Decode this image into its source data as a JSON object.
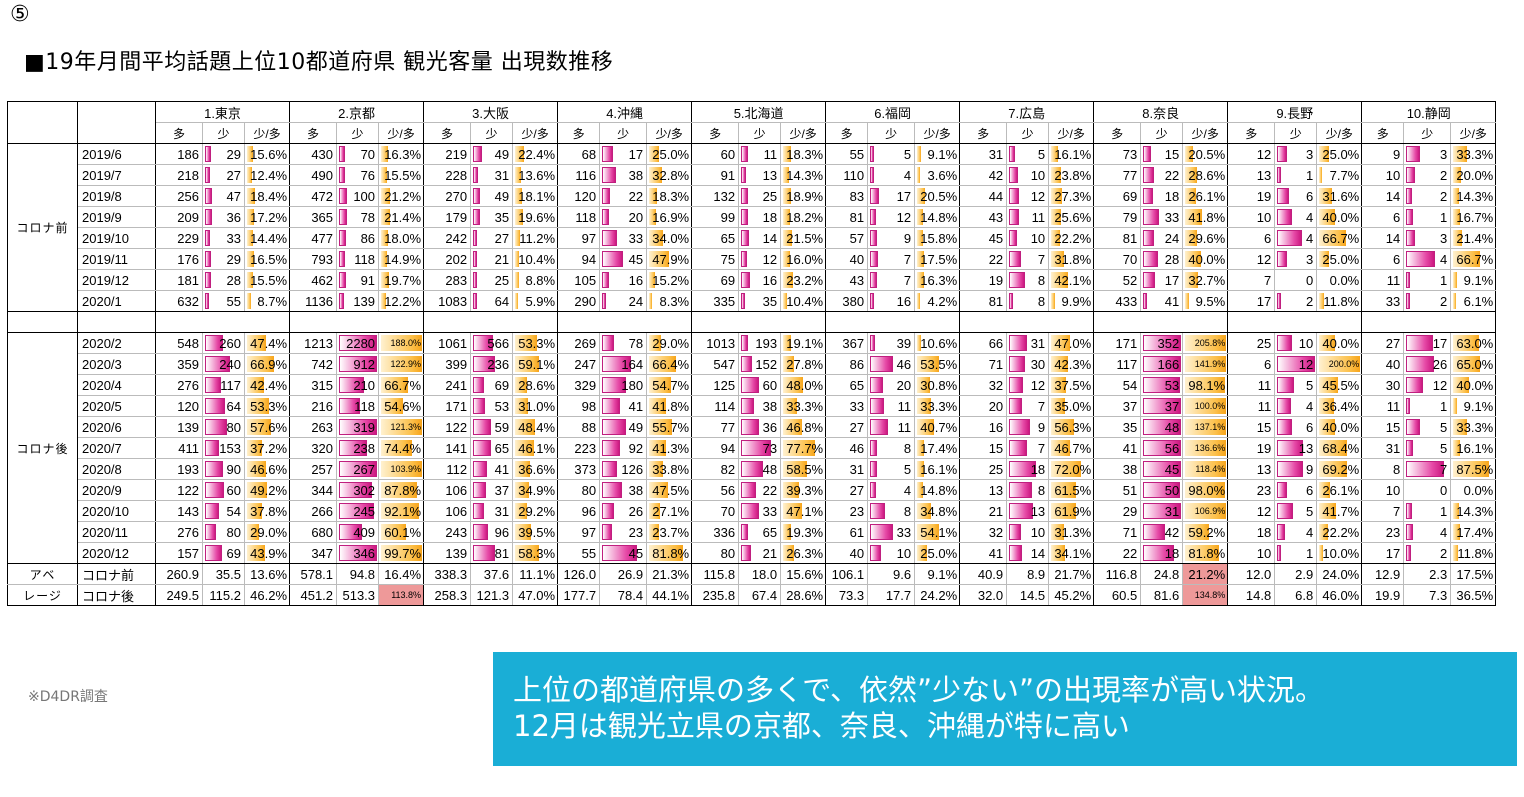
{
  "marker": "⑤",
  "title": "■19年月間平均話題上位10都道府県 観光客量 出現数推移",
  "subheaders": [
    "多",
    "少",
    "少/多"
  ],
  "prefectures": [
    "1.東京",
    "2.京都",
    "3.大阪",
    "4.沖縄",
    "5.北海道",
    "6.福岡",
    "7.広島",
    "8.奈良",
    "9.長野",
    "10.静岡"
  ],
  "groups": {
    "before": "コロナ前",
    "after": "コロナ後",
    "average_l1": "アベ",
    "average_l2": "レージ"
  },
  "avg_labels": [
    "コロナ前",
    "コロナ後"
  ],
  "note": "※D4DR調査",
  "callout": {
    "line1": "上位の都道府県の多くで、依然”少ない”の出現率が高い状況。",
    "line2": "12月は観光立県の京都、奈良、沖縄が特に高い"
  },
  "colors": {
    "bar_pink": "#e64aa7",
    "bar_orange": "#fcc04a",
    "highlight": "#ee9999",
    "callout_bg": "#1aaed6"
  },
  "pre_rows": [
    {
      "period": "2019/6",
      "cells": [
        [
          186,
          29,
          "15.6%"
        ],
        [
          430,
          70,
          "16.3%"
        ],
        [
          219,
          49,
          "22.4%"
        ],
        [
          68,
          17,
          "25.0%"
        ],
        [
          60,
          11,
          "18.3%"
        ],
        [
          55,
          5,
          "9.1%"
        ],
        [
          31,
          5,
          "16.1%"
        ],
        [
          73,
          15,
          "20.5%"
        ],
        [
          12,
          3,
          "25.0%"
        ],
        [
          9,
          3,
          "33.3%"
        ]
      ]
    },
    {
      "period": "2019/7",
      "cells": [
        [
          218,
          27,
          "12.4%"
        ],
        [
          490,
          76,
          "15.5%"
        ],
        [
          228,
          31,
          "13.6%"
        ],
        [
          116,
          38,
          "32.8%"
        ],
        [
          91,
          13,
          "14.3%"
        ],
        [
          110,
          4,
          "3.6%"
        ],
        [
          42,
          10,
          "23.8%"
        ],
        [
          77,
          22,
          "28.6%"
        ],
        [
          13,
          1,
          "7.7%"
        ],
        [
          10,
          2,
          "20.0%"
        ]
      ]
    },
    {
      "period": "2019/8",
      "cells": [
        [
          256,
          47,
          "18.4%"
        ],
        [
          472,
          100,
          "21.2%"
        ],
        [
          270,
          49,
          "18.1%"
        ],
        [
          120,
          22,
          "18.3%"
        ],
        [
          132,
          25,
          "18.9%"
        ],
        [
          83,
          17,
          "20.5%"
        ],
        [
          44,
          12,
          "27.3%"
        ],
        [
          69,
          18,
          "26.1%"
        ],
        [
          19,
          6,
          "31.6%"
        ],
        [
          14,
          2,
          "14.3%"
        ]
      ]
    },
    {
      "period": "2019/9",
      "cells": [
        [
          209,
          36,
          "17.2%"
        ],
        [
          365,
          78,
          "21.4%"
        ],
        [
          179,
          35,
          "19.6%"
        ],
        [
          118,
          20,
          "16.9%"
        ],
        [
          99,
          18,
          "18.2%"
        ],
        [
          81,
          12,
          "14.8%"
        ],
        [
          43,
          11,
          "25.6%"
        ],
        [
          79,
          33,
          "41.8%"
        ],
        [
          10,
          4,
          "40.0%"
        ],
        [
          6,
          1,
          "16.7%"
        ]
      ]
    },
    {
      "period": "2019/10",
      "cells": [
        [
          229,
          33,
          "14.4%"
        ],
        [
          477,
          86,
          "18.0%"
        ],
        [
          242,
          27,
          "11.2%"
        ],
        [
          97,
          33,
          "34.0%"
        ],
        [
          65,
          14,
          "21.5%"
        ],
        [
          57,
          9,
          "15.8%"
        ],
        [
          45,
          10,
          "22.2%"
        ],
        [
          81,
          24,
          "29.6%"
        ],
        [
          6,
          4,
          "66.7%"
        ],
        [
          14,
          3,
          "21.4%"
        ]
      ]
    },
    {
      "period": "2019/11",
      "cells": [
        [
          176,
          29,
          "16.5%"
        ],
        [
          793,
          118,
          "14.9%"
        ],
        [
          202,
          21,
          "10.4%"
        ],
        [
          94,
          45,
          "47.9%"
        ],
        [
          75,
          12,
          "16.0%"
        ],
        [
          40,
          7,
          "17.5%"
        ],
        [
          22,
          7,
          "31.8%"
        ],
        [
          70,
          28,
          "40.0%"
        ],
        [
          12,
          3,
          "25.0%"
        ],
        [
          6,
          4,
          "66.7%"
        ]
      ]
    },
    {
      "period": "2019/12",
      "cells": [
        [
          181,
          28,
          "15.5%"
        ],
        [
          462,
          91,
          "19.7%"
        ],
        [
          283,
          25,
          "8.8%"
        ],
        [
          105,
          16,
          "15.2%"
        ],
        [
          69,
          16,
          "23.2%"
        ],
        [
          43,
          7,
          "16.3%"
        ],
        [
          19,
          8,
          "42.1%"
        ],
        [
          52,
          17,
          "32.7%"
        ],
        [
          7,
          0,
          "0.0%"
        ],
        [
          11,
          1,
          "9.1%"
        ]
      ]
    },
    {
      "period": "2020/1",
      "cells": [
        [
          632,
          55,
          "8.7%"
        ],
        [
          1136,
          139,
          "12.2%"
        ],
        [
          1083,
          64,
          "5.9%"
        ],
        [
          290,
          24,
          "8.3%"
        ],
        [
          335,
          35,
          "10.4%"
        ],
        [
          380,
          16,
          "4.2%"
        ],
        [
          81,
          8,
          "9.9%"
        ],
        [
          433,
          41,
          "9.5%"
        ],
        [
          17,
          2,
          "11.8%"
        ],
        [
          33,
          2,
          "6.1%"
        ]
      ]
    }
  ],
  "post_rows": [
    {
      "period": "2020/2",
      "cells": [
        [
          548,
          260,
          "47.4%"
        ],
        [
          1213,
          2280,
          "188.0%"
        ],
        [
          1061,
          566,
          "53.3%"
        ],
        [
          269,
          78,
          "29.0%"
        ],
        [
          1013,
          193,
          "19.1%"
        ],
        [
          367,
          39,
          "10.6%"
        ],
        [
          66,
          31,
          "47.0%"
        ],
        [
          171,
          352,
          "205.8%"
        ],
        [
          25,
          10,
          "40.0%"
        ],
        [
          27,
          17,
          "63.0%"
        ]
      ]
    },
    {
      "period": "2020/3",
      "cells": [
        [
          359,
          240,
          "66.9%"
        ],
        [
          742,
          912,
          "122.9%"
        ],
        [
          399,
          236,
          "59.1%"
        ],
        [
          247,
          164,
          "66.4%"
        ],
        [
          547,
          152,
          "27.8%"
        ],
        [
          86,
          46,
          "53.5%"
        ],
        [
          71,
          30,
          "42.3%"
        ],
        [
          117,
          166,
          "141.9%"
        ],
        [
          6,
          12,
          "200.0%"
        ],
        [
          40,
          26,
          "65.0%"
        ]
      ]
    },
    {
      "period": "2020/4",
      "cells": [
        [
          276,
          117,
          "42.4%"
        ],
        [
          315,
          210,
          "66.7%"
        ],
        [
          241,
          69,
          "28.6%"
        ],
        [
          329,
          180,
          "54.7%"
        ],
        [
          125,
          60,
          "48.0%"
        ],
        [
          65,
          20,
          "30.8%"
        ],
        [
          32,
          12,
          "37.5%"
        ],
        [
          54,
          53,
          "98.1%"
        ],
        [
          11,
          5,
          "45.5%"
        ],
        [
          30,
          12,
          "40.0%"
        ]
      ]
    },
    {
      "period": "2020/5",
      "cells": [
        [
          120,
          64,
          "53.3%"
        ],
        [
          216,
          118,
          "54.6%"
        ],
        [
          171,
          53,
          "31.0%"
        ],
        [
          98,
          41,
          "41.8%"
        ],
        [
          114,
          38,
          "33.3%"
        ],
        [
          33,
          11,
          "33.3%"
        ],
        [
          20,
          7,
          "35.0%"
        ],
        [
          37,
          37,
          "100.0%"
        ],
        [
          11,
          4,
          "36.4%"
        ],
        [
          11,
          1,
          "9.1%"
        ]
      ]
    },
    {
      "period": "2020/6",
      "cells": [
        [
          139,
          80,
          "57.6%"
        ],
        [
          263,
          319,
          "121.3%"
        ],
        [
          122,
          59,
          "48.4%"
        ],
        [
          88,
          49,
          "55.7%"
        ],
        [
          77,
          36,
          "46.8%"
        ],
        [
          27,
          11,
          "40.7%"
        ],
        [
          16,
          9,
          "56.3%"
        ],
        [
          35,
          48,
          "137.1%"
        ],
        [
          15,
          6,
          "40.0%"
        ],
        [
          15,
          5,
          "33.3%"
        ]
      ]
    },
    {
      "period": "2020/7",
      "cells": [
        [
          411,
          153,
          "37.2%"
        ],
        [
          320,
          238,
          "74.4%"
        ],
        [
          141,
          65,
          "46.1%"
        ],
        [
          223,
          92,
          "41.3%"
        ],
        [
          94,
          73,
          "77.7%"
        ],
        [
          46,
          8,
          "17.4%"
        ],
        [
          15,
          7,
          "46.7%"
        ],
        [
          41,
          56,
          "136.6%"
        ],
        [
          19,
          13,
          "68.4%"
        ],
        [
          31,
          5,
          "16.1%"
        ]
      ]
    },
    {
      "period": "2020/8",
      "cells": [
        [
          193,
          90,
          "46.6%"
        ],
        [
          257,
          267,
          "103.9%"
        ],
        [
          112,
          41,
          "36.6%"
        ],
        [
          373,
          126,
          "33.8%"
        ],
        [
          82,
          48,
          "58.5%"
        ],
        [
          31,
          5,
          "16.1%"
        ],
        [
          25,
          18,
          "72.0%"
        ],
        [
          38,
          45,
          "118.4%"
        ],
        [
          13,
          9,
          "69.2%"
        ],
        [
          8,
          7,
          "87.5%"
        ]
      ]
    },
    {
      "period": "2020/9",
      "cells": [
        [
          122,
          60,
          "49.2%"
        ],
        [
          344,
          302,
          "87.8%"
        ],
        [
          106,
          37,
          "34.9%"
        ],
        [
          80,
          38,
          "47.5%"
        ],
        [
          56,
          22,
          "39.3%"
        ],
        [
          27,
          4,
          "14.8%"
        ],
        [
          13,
          8,
          "61.5%"
        ],
        [
          51,
          50,
          "98.0%"
        ],
        [
          23,
          6,
          "26.1%"
        ],
        [
          10,
          0,
          "0.0%"
        ]
      ]
    },
    {
      "period": "2020/10",
      "cells": [
        [
          143,
          54,
          "37.8%"
        ],
        [
          266,
          245,
          "92.1%"
        ],
        [
          106,
          31,
          "29.2%"
        ],
        [
          96,
          26,
          "27.1%"
        ],
        [
          70,
          33,
          "47.1%"
        ],
        [
          23,
          8,
          "34.8%"
        ],
        [
          21,
          13,
          "61.9%"
        ],
        [
          29,
          31,
          "106.9%"
        ],
        [
          12,
          5,
          "41.7%"
        ],
        [
          7,
          1,
          "14.3%"
        ]
      ]
    },
    {
      "period": "2020/11",
      "cells": [
        [
          276,
          80,
          "29.0%"
        ],
        [
          680,
          409,
          "60.1%"
        ],
        [
          243,
          96,
          "39.5%"
        ],
        [
          97,
          23,
          "23.7%"
        ],
        [
          336,
          65,
          "19.3%"
        ],
        [
          61,
          33,
          "54.1%"
        ],
        [
          32,
          10,
          "31.3%"
        ],
        [
          71,
          42,
          "59.2%"
        ],
        [
          18,
          4,
          "22.2%"
        ],
        [
          23,
          4,
          "17.4%"
        ]
      ]
    },
    {
      "period": "2020/12",
      "cells": [
        [
          157,
          69,
          "43.9%"
        ],
        [
          347,
          346,
          "99.7%"
        ],
        [
          139,
          81,
          "58.3%"
        ],
        [
          55,
          45,
          "81.8%"
        ],
        [
          80,
          21,
          "26.3%"
        ],
        [
          40,
          10,
          "25.0%"
        ],
        [
          41,
          14,
          "34.1%"
        ],
        [
          22,
          18,
          "81.8%"
        ],
        [
          10,
          1,
          "10.0%"
        ],
        [
          17,
          2,
          "11.8%"
        ]
      ]
    }
  ],
  "avg_rows": [
    {
      "cells": [
        [
          "260.9",
          "35.5",
          "13.6%"
        ],
        [
          "578.1",
          "94.8",
          "16.4%"
        ],
        [
          "338.3",
          "37.6",
          "11.1%"
        ],
        [
          "126.0",
          "26.9",
          "21.3%"
        ],
        [
          "115.8",
          "18.0",
          "15.6%"
        ],
        [
          "106.1",
          "9.6",
          "9.1%"
        ],
        [
          "40.9",
          "8.9",
          "21.7%"
        ],
        [
          "116.8",
          "24.8",
          "21.2%"
        ],
        [
          "12.0",
          "2.9",
          "24.0%"
        ],
        [
          "12.9",
          "2.3",
          "17.5%"
        ]
      ]
    },
    {
      "cells": [
        [
          "249.5",
          "115.2",
          "46.2%"
        ],
        [
          "451.2",
          "513.3",
          "113.8%"
        ],
        [
          "258.3",
          "121.3",
          "47.0%"
        ],
        [
          "177.7",
          "78.4",
          "44.1%"
        ],
        [
          "235.8",
          "67.4",
          "28.6%"
        ],
        [
          "73.3",
          "17.7",
          "24.2%"
        ],
        [
          "32.0",
          "14.5",
          "45.2%"
        ],
        [
          "60.5",
          "81.6",
          "134.8%"
        ],
        [
          "14.8",
          "6.8",
          "46.0%"
        ],
        [
          "19.9",
          "7.3",
          "36.5%"
        ]
      ]
    }
  ],
  "avg_highlight": [
    [
      1,
      1
    ],
    [
      0,
      7
    ],
    [
      1,
      7
    ]
  ]
}
